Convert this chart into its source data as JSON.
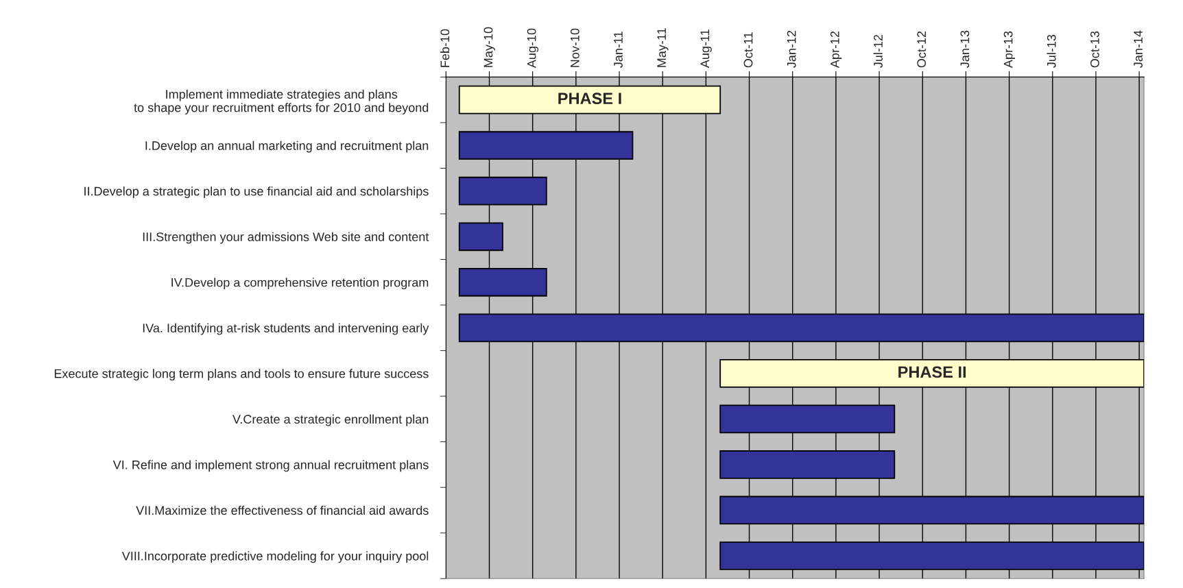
{
  "chart_data": {
    "type": "bar",
    "orientation": "horizontal",
    "categories": [
      "Implement immediate strategies and plans\nto shape your recruitment efforts for 2010 and beyond",
      "I.Develop an annual marketing and recruitment plan",
      "II.Develop a strategic plan to use financial aid and scholarships",
      "III.Strengthen your admissions Web site and content",
      "IV.Develop a comprehensive retention program",
      "IVa. Identifying at-risk students and intervening early",
      "Execute strategic long term plans and tools to ensure future success",
      "V.Create a strategic enrollment plan",
      "VI. Refine and implement strong annual recruitment plans",
      "VII.Maximize the effectiveness of financial aid awards",
      "VIII.Incorporate predictive modeling for your inquiry pool"
    ],
    "base": [
      14669,
      14669,
      14669,
      14669,
      14669,
      14669,
      15217,
      15217,
      15217,
      15217,
      15217
    ],
    "values": [
      548,
      364,
      183,
      91,
      183,
      1438,
      890,
      366,
      366,
      890,
      890
    ],
    "colors": [
      "#ffffcc",
      "#333399",
      "#333399",
      "#333399",
      "#333399",
      "#333399",
      "#ffffcc",
      "#333399",
      "#333399",
      "#333399",
      "#333399"
    ],
    "value_labels": [
      "PHASE I",
      null,
      null,
      null,
      null,
      null,
      "PHASE II",
      null,
      null,
      null,
      null
    ],
    "xlim": [
      "2010-02-01",
      "2014-02-06"
    ],
    "xticks": [
      {
        "value": "2010-02-01",
        "label": "Feb-10"
      },
      {
        "value": "2010-05-03",
        "label": "May-10"
      },
      {
        "value": "2010-08-02",
        "label": "Aug-10"
      },
      {
        "value": "2010-11-01",
        "label": "Nov-10"
      },
      {
        "value": "2011-01-31",
        "label": "Jan-11"
      },
      {
        "value": "2011-05-02",
        "label": "May-11"
      },
      {
        "value": "2011-08-01",
        "label": "Aug-11"
      },
      {
        "value": "2011-10-31",
        "label": "Oct-11"
      },
      {
        "value": "2012-01-30",
        "label": "Jan-12"
      },
      {
        "value": "2012-04-30",
        "label": "Apr-12"
      },
      {
        "value": "2012-07-30",
        "label": "Jul-12"
      },
      {
        "value": "2012-10-29",
        "label": "Oct-12"
      },
      {
        "value": "2013-01-28",
        "label": "Jan-13"
      },
      {
        "value": "2013-04-29",
        "label": "Apr-13"
      },
      {
        "value": "2013-07-29",
        "label": "Jul-13"
      },
      {
        "value": "2013-10-28",
        "label": "Oct-13"
      },
      {
        "value": "2014-01-27",
        "label": "Jan-14"
      }
    ],
    "grid": "x"
  }
}
